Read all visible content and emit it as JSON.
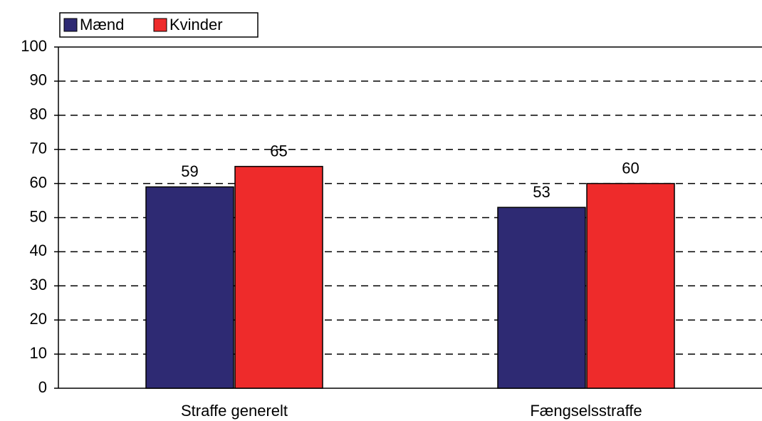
{
  "chart_data": {
    "type": "bar",
    "categories": [
      "Straffe generelt",
      "Fængselsstraffe"
    ],
    "series": [
      {
        "name": "Mænd",
        "color": "#2e2a73",
        "values": [
          59,
          53
        ]
      },
      {
        "name": "Kvinder",
        "color": "#ee2b2b",
        "values": [
          65,
          60
        ]
      }
    ],
    "ylim": [
      0,
      100
    ],
    "yticks": [
      0,
      10,
      20,
      30,
      40,
      50,
      60,
      70,
      80,
      90,
      100
    ],
    "grid": true,
    "legend": "top-left"
  }
}
